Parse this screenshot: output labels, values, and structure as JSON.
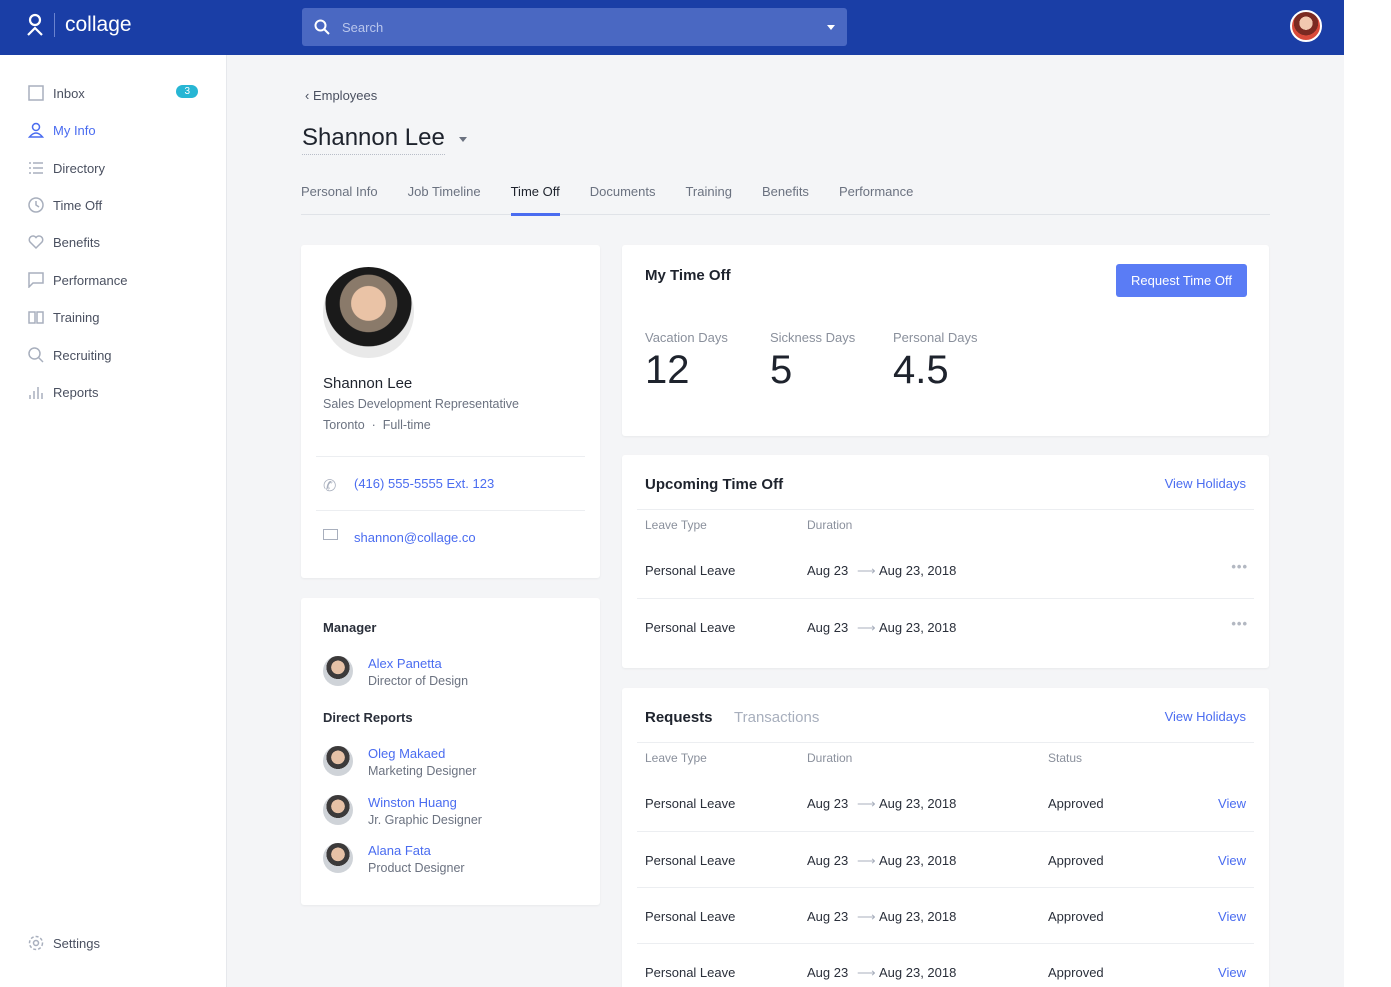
{
  "header": {
    "brand": "collage",
    "search_placeholder": "Search"
  },
  "sidebar": {
    "items": [
      {
        "label": "Inbox",
        "icon": "inbox-icon",
        "badge": "3"
      },
      {
        "label": "My Info",
        "icon": "user-icon",
        "active": true
      },
      {
        "label": "Directory",
        "icon": "list-icon"
      },
      {
        "label": "Time Off",
        "icon": "clock-icon"
      },
      {
        "label": "Benefits",
        "icon": "heart-icon"
      },
      {
        "label": "Performance",
        "icon": "chat-icon"
      },
      {
        "label": "Training",
        "icon": "book-icon"
      },
      {
        "label": "Recruiting",
        "icon": "search-icon"
      },
      {
        "label": "Reports",
        "icon": "bar-chart-icon"
      }
    ],
    "settings": "Settings"
  },
  "breadcrumb": "Employees",
  "employee_name": "Shannon Lee",
  "tabs": [
    "Personal Info",
    "Job Timeline",
    "Time Off",
    "Documents",
    "Training",
    "Benefits",
    "Performance"
  ],
  "active_tab": "Time Off",
  "profile": {
    "name": "Shannon Lee",
    "title": "Sales Development Representative",
    "location": "Toronto",
    "type": "Full-time",
    "separator": "·",
    "phone": "(416) 555-5555  Ext. 123",
    "email": "shannon@collage.co"
  },
  "team": {
    "manager_heading": "Manager",
    "manager": {
      "name": "Alex Panetta",
      "title": "Director of Design"
    },
    "reports_heading": "Direct Reports",
    "reports": [
      {
        "name": "Oleg Makaed",
        "title": "Marketing Designer"
      },
      {
        "name": "Winston Huang",
        "title": "Jr. Graphic Designer"
      },
      {
        "name": "Alana Fata",
        "title": "Product Designer"
      }
    ]
  },
  "my_time_off": {
    "title": "My Time Off",
    "button": "Request Time Off",
    "balances": [
      {
        "label": "Vacation Days",
        "value": "12"
      },
      {
        "label": "Sickness Days",
        "value": "5"
      },
      {
        "label": "Personal Days",
        "value": "4.5"
      }
    ]
  },
  "upcoming": {
    "title": "Upcoming Time Off",
    "link": "View Holidays",
    "columns": [
      "Leave Type",
      "Duration"
    ],
    "rows": [
      {
        "type": "Personal Leave",
        "from": "Aug 23",
        "to": "Aug 23, 2018"
      },
      {
        "type": "Personal Leave",
        "from": "Aug 23",
        "to": "Aug 23, 2018"
      }
    ]
  },
  "requests": {
    "tabs": [
      "Requests",
      "Transactions"
    ],
    "link": "View Holidays",
    "columns": [
      "Leave Type",
      "Duration",
      "Status"
    ],
    "rows": [
      {
        "type": "Personal Leave",
        "from": "Aug 23",
        "to": "Aug 23, 2018",
        "status": "Approved",
        "action": "View"
      },
      {
        "type": "Personal Leave",
        "from": "Aug 23",
        "to": "Aug 23, 2018",
        "status": "Approved",
        "action": "View"
      },
      {
        "type": "Personal Leave",
        "from": "Aug 23",
        "to": "Aug 23, 2018",
        "status": "Approved",
        "action": "View"
      },
      {
        "type": "Personal Leave",
        "from": "Aug 23",
        "to": "Aug 23, 2018",
        "status": "Approved",
        "action": "View"
      }
    ]
  },
  "colors": {
    "header": "#1a3ea6",
    "accent": "#4a6cf0",
    "badge": "#27b6d4"
  }
}
